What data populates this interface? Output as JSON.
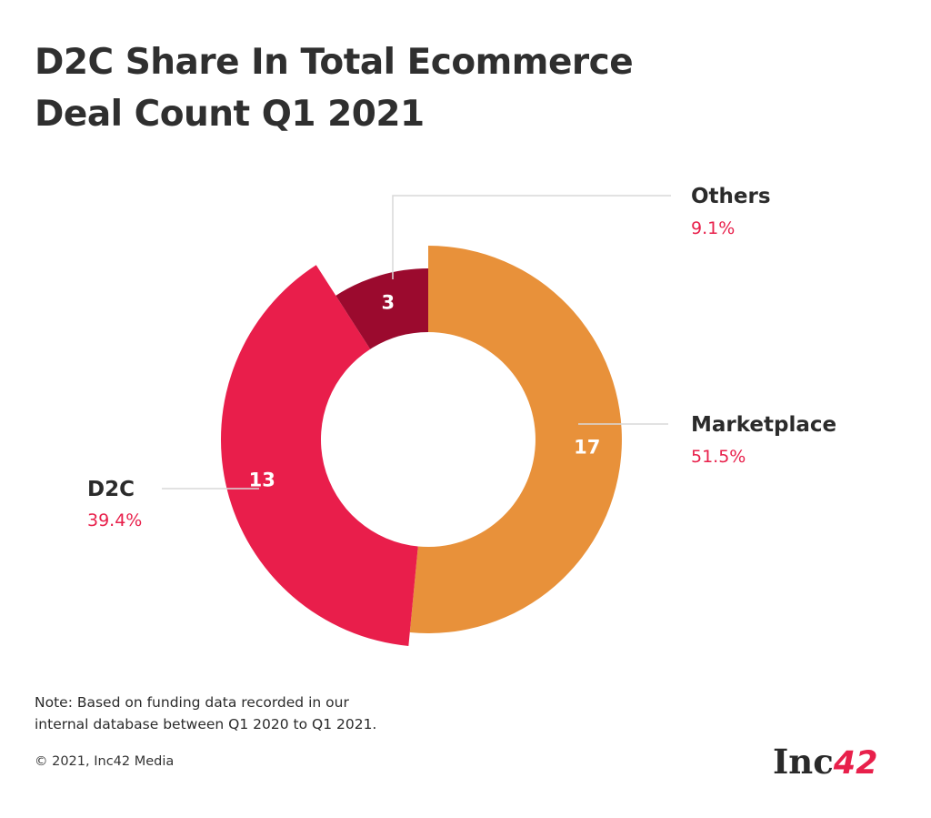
{
  "title": {
    "line1": "D2C Share In Total Ecommerce",
    "line2": "Deal Count Q1 2021"
  },
  "chart_data": {
    "type": "pie",
    "subtype": "donut",
    "title": "D2C Share In Total Ecommerce Deal Count Q1 2021",
    "slices": [
      {
        "name": "Marketplace",
        "value": 17,
        "percent": "51.5%",
        "color": "#e8913a"
      },
      {
        "name": "D2C",
        "value": 13,
        "percent": "39.4%",
        "color": "#e91e4b"
      },
      {
        "name": "Others",
        "value": 3,
        "percent": "9.1%",
        "color": "#9b0a2e"
      }
    ],
    "label_percent_color": "#e8204b"
  },
  "note": {
    "line1": "Note: Based on funding data recorded in our",
    "line2": "internal database between Q1 2020 to Q1 2021."
  },
  "footer": {
    "copyright": "© 2021, Inc42 Media"
  },
  "logo": {
    "text": "Inc",
    "number": "42"
  }
}
